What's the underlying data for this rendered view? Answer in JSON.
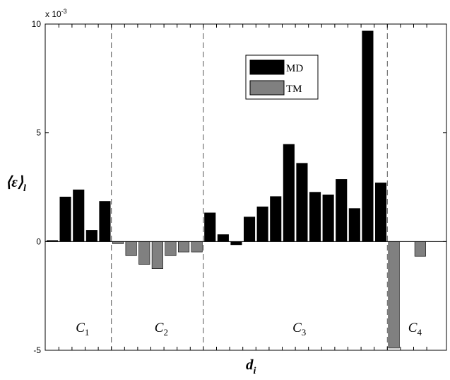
{
  "chart_data": {
    "type": "bar",
    "ylabel_text": "⟨ε⟩",
    "ylabel_subscript": "l",
    "xlabel_text": "d",
    "xlabel_subscript": "i",
    "exponent_base": "x 10",
    "exponent_power": "-3",
    "ylim": [
      -5,
      10
    ],
    "yticks": [
      {
        "value": -5,
        "label": "-5"
      },
      {
        "value": 0,
        "label": "0"
      },
      {
        "value": 5,
        "label": "5"
      },
      {
        "value": 10,
        "label": "10"
      }
    ],
    "grid": false,
    "legend_position": "top-center",
    "series": [
      {
        "name": "MD",
        "color": "#000000",
        "values": [
          0.05,
          2.05,
          2.38,
          0.52,
          1.85,
          0,
          0,
          0,
          0,
          0,
          0,
          0,
          1.32,
          0.32,
          -0.15,
          1.13,
          1.6,
          2.07,
          4.47,
          3.6,
          2.27,
          2.15,
          2.86,
          1.52,
          9.68,
          2.7,
          0,
          0,
          0
        ]
      },
      {
        "name": "TM",
        "color": "#808080",
        "values": [
          0,
          0,
          0,
          0,
          0,
          -0.1,
          -0.65,
          -1.05,
          -1.25,
          -0.65,
          -0.48,
          -0.48,
          0,
          0,
          0,
          0,
          0,
          0,
          0,
          0,
          0,
          0,
          0,
          0,
          0,
          0,
          -4.9,
          0,
          -0.68
        ]
      }
    ],
    "boundaries_after_bar": [
      4.5,
      11.5,
      25.5
    ],
    "clusters": [
      {
        "letter": "C",
        "sub": "1",
        "bar_center": 2.3
      },
      {
        "letter": "C",
        "sub": "2",
        "bar_center": 8.3
      },
      {
        "letter": "C",
        "sub": "3",
        "bar_center": 18.8
      },
      {
        "letter": "C",
        "sub": "4",
        "bar_center": 27.6
      }
    ]
  }
}
